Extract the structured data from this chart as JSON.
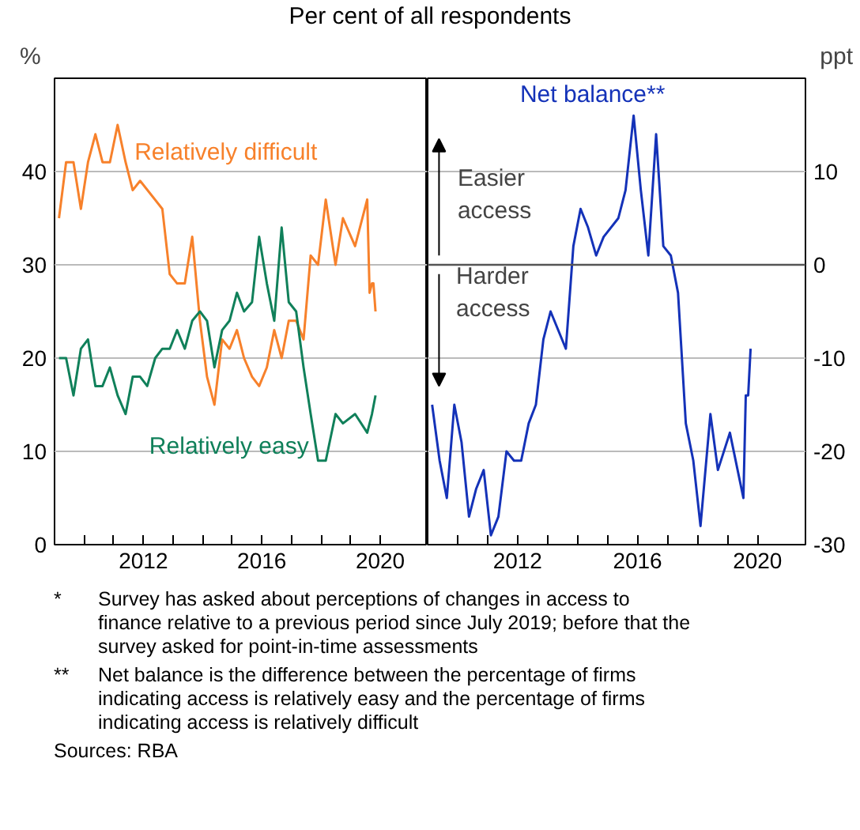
{
  "chart_data": [
    {
      "type": "line",
      "title": "Per cent of all respondents",
      "ylabel": "%",
      "xlim": [
        2009.0,
        2021.6
      ],
      "xticks": [
        {
          "value": 2010,
          "label": null
        },
        {
          "value": 2011,
          "label": null
        },
        2012,
        {
          "value": 2013,
          "label": null
        },
        {
          "value": 2014,
          "label": null
        },
        {
          "value": 2015,
          "label": null
        },
        2016,
        {
          "value": 2017,
          "label": null
        },
        {
          "value": 2018,
          "label": null
        },
        {
          "value": 2019,
          "label": null
        },
        2020
      ],
      "ylim": [
        0,
        50
      ],
      "yticks": [
        0,
        10,
        20,
        30,
        40
      ],
      "grid": "y",
      "legend": false,
      "series": [
        {
          "name": "Relatively difficult",
          "color": "#f7812b",
          "x": [
            2009.15,
            2009.39,
            2009.64,
            2009.89,
            2010.13,
            2010.38,
            2010.62,
            2010.87,
            2011.13,
            2011.4,
            2011.64,
            2011.89,
            2012.64,
            2012.89,
            2013.14,
            2013.4,
            2013.65,
            2013.91,
            2014.15,
            2014.4,
            2014.66,
            2014.91,
            2015.16,
            2015.4,
            2015.67,
            2015.91,
            2016.17,
            2016.42,
            2016.67,
            2016.91,
            2017.16,
            2017.41,
            2017.65,
            2017.9,
            2018.16,
            2018.49,
            2018.74,
            2019.15,
            2019.56,
            2019.64,
            2019.72,
            2019.77,
            2019.84
          ],
          "values": [
            35,
            41,
            41,
            36,
            41,
            44,
            41,
            41,
            45,
            41,
            38,
            39,
            36,
            29,
            28,
            28,
            33,
            24,
            18,
            15,
            22,
            21,
            23,
            20,
            18,
            17,
            19,
            23,
            20,
            24,
            24,
            22,
            31,
            30,
            37,
            30,
            35,
            32,
            37,
            27,
            28,
            28,
            25
          ]
        },
        {
          "name": "Relatively easy",
          "color": "#10805a",
          "x": [
            2009.15,
            2009.39,
            2009.64,
            2009.89,
            2010.13,
            2010.38,
            2010.62,
            2010.87,
            2011.13,
            2011.4,
            2011.64,
            2011.89,
            2012.13,
            2012.4,
            2012.64,
            2012.89,
            2013.14,
            2013.4,
            2013.65,
            2013.91,
            2014.15,
            2014.4,
            2014.66,
            2014.91,
            2015.16,
            2015.4,
            2015.67,
            2015.91,
            2016.17,
            2016.42,
            2016.67,
            2016.91,
            2017.16,
            2017.41,
            2017.65,
            2017.9,
            2018.16,
            2018.49,
            2018.74,
            2019.15,
            2019.56,
            2019.72,
            2019.84
          ],
          "values": [
            20,
            20,
            16,
            21,
            22,
            17,
            17,
            19,
            16,
            14,
            18,
            18,
            17,
            20,
            21,
            21,
            23,
            21,
            24,
            25,
            24,
            19,
            23,
            24,
            27,
            25,
            26,
            33,
            28,
            24,
            34,
            26,
            25,
            19,
            14,
            9,
            9,
            14,
            13,
            14,
            12,
            14,
            16
          ]
        }
      ]
    },
    {
      "type": "line",
      "ylabel": "ppt",
      "xlim": [
        2009.0,
        2021.6
      ],
      "xticks": [
        {
          "value": 2010,
          "label": null
        },
        {
          "value": 2011,
          "label": null
        },
        2012,
        {
          "value": 2013,
          "label": null
        },
        {
          "value": 2014,
          "label": null
        },
        {
          "value": 2015,
          "label": null
        },
        2016,
        {
          "value": 2017,
          "label": null
        },
        {
          "value": 2018,
          "label": null
        },
        {
          "value": 2019,
          "label": null
        },
        2020
      ],
      "ylim": [
        -30,
        20
      ],
      "yticks": [
        -30,
        -20,
        -10,
        0,
        10
      ],
      "grid": "y",
      "legend": false,
      "ref_lines": [
        {
          "axis": "y",
          "value": 0,
          "color": "#555555"
        }
      ],
      "series": [
        {
          "name": "Net balance**",
          "color": "#1432b8",
          "x": [
            2009.15,
            2009.4,
            2009.64,
            2009.89,
            2010.13,
            2010.38,
            2010.62,
            2010.87,
            2011.11,
            2011.36,
            2011.63,
            2011.88,
            2012.12,
            2012.37,
            2012.61,
            2012.86,
            2013.1,
            2013.61,
            2013.86,
            2014.1,
            2014.35,
            2014.62,
            2014.87,
            2015.36,
            2015.6,
            2015.87,
            2016.11,
            2016.36,
            2016.62,
            2016.86,
            2017.11,
            2017.35,
            2017.61,
            2017.86,
            2018.1,
            2018.43,
            2018.68,
            2019.08,
            2019.53,
            2019.61,
            2019.69,
            2019.77
          ],
          "values": [
            -15,
            -21,
            -25,
            -15,
            -19,
            -27,
            -24,
            -22,
            -29,
            -27,
            -20,
            -21,
            -21,
            -17,
            -15,
            -8,
            -5,
            -9,
            2,
            6,
            4,
            1,
            3,
            5,
            8,
            16,
            8,
            1,
            14,
            2,
            1,
            -3,
            -17,
            -21,
            -28,
            -16,
            -22,
            -18,
            -25,
            -14,
            -14,
            -9
          ]
        }
      ],
      "annotations": [
        "Easier access",
        "Harder access",
        "* Survey has asked about perceptions of changes in access to finance relative to a previous period since July 2019; before that the survey asked for point-in-time assessments",
        "** Net balance is the difference between the percentage of firms indicating access is relatively easy and the percentage of firms indicating access is relatively difficult",
        "Sources: RBA"
      ]
    }
  ]
}
